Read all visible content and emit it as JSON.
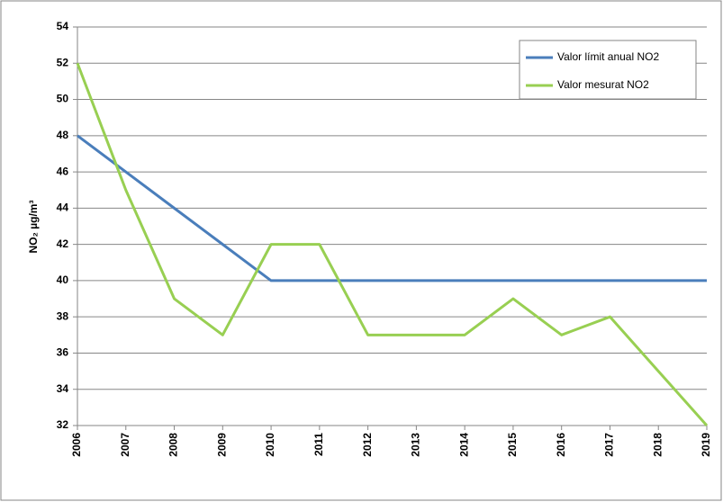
{
  "chart_data": {
    "type": "line",
    "ylabel": "NO₂ µg/m³",
    "categories": [
      "2006",
      "2007",
      "2008",
      "2009",
      "2010",
      "2011",
      "2012",
      "2013",
      "2014",
      "2015",
      "2016",
      "2017",
      "2018",
      "2019"
    ],
    "series": [
      {
        "name": "Valor límit anual NO2",
        "color": "#4a7ebb",
        "values": [
          48,
          46,
          44,
          42,
          40,
          40,
          40,
          40,
          40,
          40,
          40,
          40,
          40,
          40
        ]
      },
      {
        "name": "Valor mesurat NO2",
        "color": "#98cf52",
        "values": [
          52,
          45,
          39,
          37,
          42,
          42,
          37,
          37,
          37,
          39,
          37,
          38,
          35,
          32
        ]
      }
    ],
    "ylim": [
      32,
      54
    ],
    "yticks": [
      32,
      34,
      36,
      38,
      40,
      42,
      44,
      46,
      48,
      50,
      52,
      54
    ],
    "grid": true,
    "legend": "upper right"
  }
}
